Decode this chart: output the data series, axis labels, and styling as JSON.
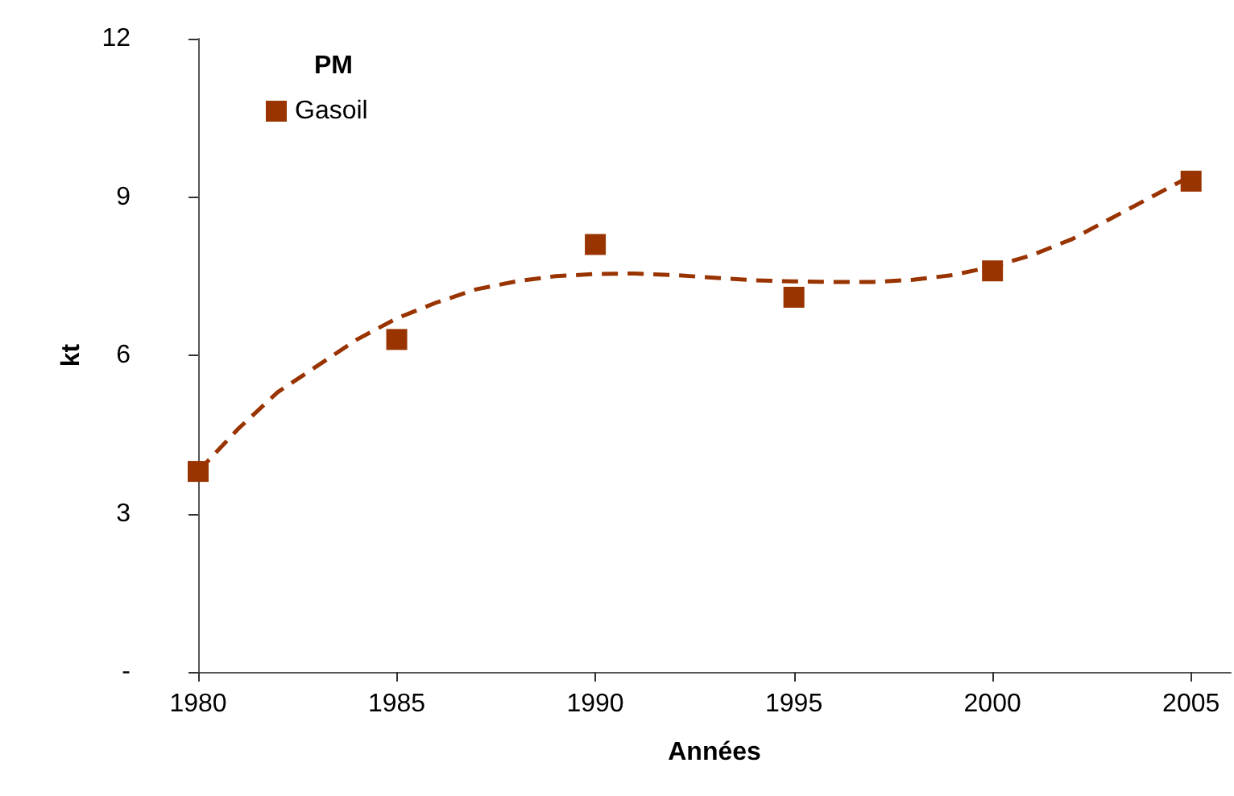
{
  "chart_data": {
    "type": "scatter",
    "xlabel": "Années",
    "ylabel": "kt",
    "legend_title": "PM",
    "legend": "top left",
    "grid": false,
    "marker": "square",
    "xlim": [
      1980,
      2006
    ],
    "xticks": [
      1980,
      1985,
      1990,
      1995,
      2000,
      2005
    ],
    "ylim": [
      0,
      12
    ],
    "yticks": [
      {
        "value": 0,
        "label": "-"
      },
      3,
      6,
      9,
      12
    ],
    "series": [
      {
        "name": "Gasoil",
        "color": "#993300",
        "x": [
          1980,
          1985,
          1990,
          1995,
          2000,
          2005
        ],
        "values": [
          3.8,
          6.3,
          8.1,
          7.1,
          7.6,
          9.3
        ]
      },
      {
        "type": "line",
        "color": "#993300",
        "line_style": "dashed",
        "marker": "none",
        "x": [
          1980,
          1981,
          1982,
          1983,
          1984,
          1985,
          1986,
          1987,
          1988,
          1989,
          1990,
          1991,
          1992,
          1993,
          1994,
          1995,
          1996,
          1997,
          1998,
          1999,
          2000,
          2001,
          2002,
          2003,
          2004,
          2005
        ],
        "values": [
          3.8,
          4.6,
          5.3,
          5.8,
          6.3,
          6.7,
          7.0,
          7.25,
          7.4,
          7.5,
          7.54,
          7.55,
          7.52,
          7.47,
          7.42,
          7.4,
          7.39,
          7.39,
          7.43,
          7.52,
          7.68,
          7.9,
          8.2,
          8.6,
          9.0,
          9.4
        ]
      }
    ]
  }
}
